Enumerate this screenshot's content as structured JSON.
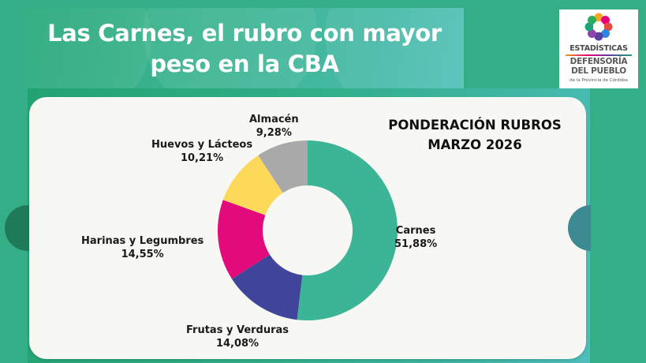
{
  "banner": {
    "title_line1": "Las Carnes, el rubro con mayor",
    "title_line2": "peso en la CBA"
  },
  "logo": {
    "line1": "ESTADÍSTICAS",
    "line2": "DEFENSORÍA",
    "line3": "DEL PUEBLO",
    "line4": "de la Provincia de Córdoba",
    "icon": "flower-emblem-icon"
  },
  "colors": {
    "background": "#34ae86",
    "carnes": "#3bb595",
    "frutas_verduras": "#40449a",
    "harinas_legumbres": "#e30b7c",
    "huevos_lacteos": "#fdd95a",
    "almacen": "#a9a9a9"
  },
  "chart_data": {
    "type": "pie",
    "subtype": "donut",
    "title": "PONDERACIÓN RUBROS MARZO 2026",
    "title_line1": "PONDERACIÓN RUBROS",
    "title_line2": "MARZO 2026",
    "categories": [
      "Carnes",
      "Frutas y Verduras",
      "Harinas y Legumbres",
      "Huevos y Lácteos",
      "Almacén"
    ],
    "values": [
      51.88,
      14.08,
      14.55,
      10.21,
      9.28
    ],
    "value_labels": [
      "51,88%",
      "14,08%",
      "14,55%",
      "10,21%",
      "9,28%"
    ],
    "unit": "%",
    "start_angle": "12 o'clock, clockwise",
    "legend": "none (direct labels)",
    "colors": [
      "#3bb595",
      "#40449a",
      "#e30b7c",
      "#fdd95a",
      "#a9a9a9"
    ]
  }
}
